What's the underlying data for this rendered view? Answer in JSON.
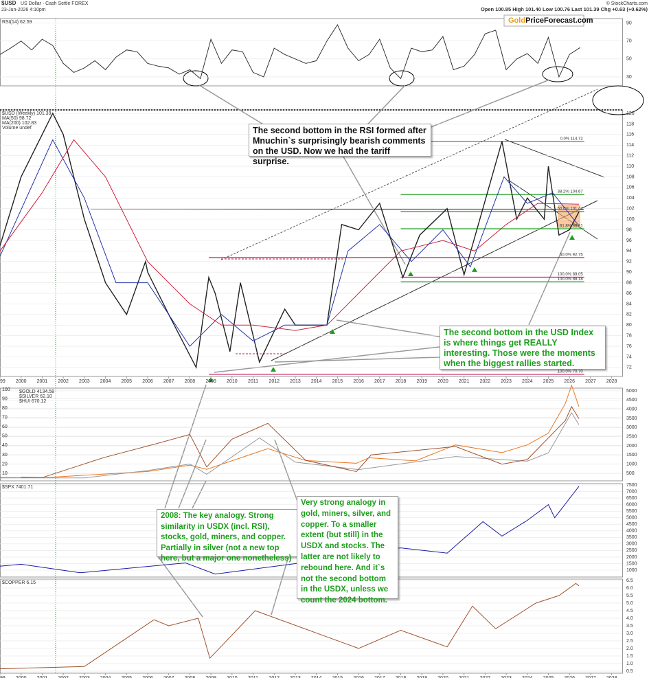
{
  "header": {
    "symbol": "$USD",
    "title": "US Dollar - Cash Settle FOREX",
    "date": "23-Jun-2026 4:10pm",
    "credit": "© StockCharts.com",
    "quote": "Open 100.85 High 101.40 Low 100.76 Last 101.39 Chg +0.63 (+0.62%)",
    "logo": [
      "Gold",
      "PriceForecast.com"
    ]
  },
  "annotations": [
    "The second bottom in the RSI formed after Mnuchin`s surprisingly bearish comments on the USD. Now we had the tariff surprise.",
    "The second bottom in the USD Index is where things get REALLY interesting. Those were the moments when the biggest rallies started.",
    "2008: The key analogy. Strong similarity in USDX (incl. RSI), stocks, gold, miners, and copper. Partially in silver (not a new top here, but a major one nonetheless)",
    "Very strong analogy in gold, miners, silver, and copper. To a smaller extent (but still) in the USDX and stocks. The latter are not likely to rebound here. And it`s not the second bottom in the USDX, unless we count the 2024 bottom."
  ],
  "chart_data": [
    {
      "type": "line",
      "title": "RSI(14) 62.59",
      "xlim": [
        1999,
        2028.5
      ],
      "ylim": [
        20,
        95
      ],
      "yticks": [
        30,
        50,
        70,
        90
      ],
      "series": [
        {
          "name": "RSI",
          "color": "#333333",
          "x": [
            1999,
            1999.5,
            2000,
            2000.5,
            2001,
            2001.5,
            2002,
            2002.5,
            2003,
            2003.5,
            2004,
            2004.5,
            2005,
            2005.5,
            2006,
            2006.5,
            2007,
            2007.5,
            2008,
            2008.5,
            2009,
            2009.5,
            2010,
            2010.5,
            2011,
            2011.5,
            2012,
            2012.5,
            2013,
            2013.5,
            2014,
            2014.5,
            2015,
            2015.5,
            2016,
            2016.5,
            2017,
            2017.5,
            2018,
            2018.5,
            2019,
            2019.5,
            2020,
            2020.5,
            2021,
            2021.5,
            2022,
            2022.5,
            2023,
            2023.5,
            2024,
            2024.5,
            2025,
            2025.5,
            2026,
            2026.5
          ],
          "values": [
            55,
            62,
            70,
            60,
            72,
            65,
            45,
            35,
            40,
            48,
            38,
            52,
            60,
            58,
            45,
            42,
            40,
            33,
            38,
            28,
            72,
            45,
            60,
            58,
            35,
            30,
            62,
            55,
            50,
            45,
            48,
            70,
            88,
            62,
            48,
            55,
            72,
            40,
            28,
            62,
            58,
            60,
            75,
            38,
            42,
            55,
            78,
            82,
            38,
            50,
            56,
            45,
            74,
            30,
            55,
            62.59
          ]
        }
      ]
    },
    {
      "type": "line",
      "legend_extra": "Volume undef",
      "xlim": [
        1999,
        2028.5
      ],
      "ylim": [
        70.3,
        120.65
      ],
      "yticks": [
        72,
        74,
        76,
        78,
        80,
        82,
        84,
        86,
        88,
        90,
        92,
        94,
        96,
        98,
        100,
        102,
        104,
        106,
        108,
        110,
        112,
        114,
        116,
        118,
        120
      ],
      "xticks": [
        1999,
        2000,
        2001,
        2002,
        2003,
        2004,
        2005,
        2006,
        2007,
        2008,
        2009,
        2010,
        2011,
        2012,
        2013,
        2014,
        2015,
        2016,
        2017,
        2018,
        2019,
        2020,
        2021,
        2022,
        2023,
        2024,
        2025,
        2026,
        2027,
        2028
      ],
      "levels": [
        {
          "value": 114.72,
          "label": "0.0% 114.72",
          "color": "#8b5a2b"
        },
        {
          "value": 104.67,
          "label": "38.2% 104.67",
          "color": "#1e9e1e"
        },
        {
          "value": 101.44,
          "label": "50.0% 101.44",
          "color": "#1e9e1e"
        },
        {
          "value": 98.21,
          "label": "61.8% 98.21",
          "color": "#1e9e1e"
        },
        {
          "value": 92.75,
          "label": "50.0% 92.75",
          "color": "#c2185b"
        },
        {
          "value": 89.05,
          "label": "100.0% 89.05",
          "color": "#c2185b"
        },
        {
          "value": 88.18,
          "label": "100.0% 88.18",
          "color": "#1e9e1e"
        },
        {
          "value": 70.7,
          "label": "100.0% 70.70",
          "color": "#c2185b"
        }
      ],
      "series": [
        {
          "name": "$USD (Weekly) 101.39",
          "color": "#222222",
          "x": [
            1999,
            2000,
            2001.5,
            2002,
            2003,
            2004,
            2005,
            2005.9,
            2006,
            2007,
            2008.3,
            2008.9,
            2009.2,
            2009.9,
            2010.4,
            2011.3,
            2012.5,
            2013,
            2014.5,
            2015.2,
            2016,
            2017,
            2018.1,
            2018.9,
            2020.2,
            2021,
            2022.8,
            2023.5,
            2024,
            2024.8,
            2025,
            2025.5,
            2026,
            2026.45
          ],
          "values": [
            95,
            108,
            120,
            116,
            100,
            88,
            82,
            92,
            90,
            82,
            72,
            89,
            86,
            75,
            88,
            73,
            83,
            80,
            80,
            99,
            98,
            103,
            89,
            97,
            102,
            89.5,
            114.7,
            100,
            104,
            100,
            110,
            97,
            98,
            101.39
          ]
        },
        {
          "name": "MA(50) 98.72",
          "color": "#2233aa",
          "x": [
            1999,
            2001.5,
            2003,
            2004.5,
            2006,
            2008,
            2009.5,
            2011,
            2012.5,
            2014.5,
            2015.5,
            2017,
            2018.5,
            2020,
            2021.3,
            2022.9,
            2024,
            2025.2,
            2026.45
          ],
          "values": [
            93,
            115,
            104,
            88,
            88,
            76,
            82,
            77,
            80,
            80,
            94,
            99,
            92,
            98,
            91,
            108,
            103,
            105,
            98.72
          ]
        },
        {
          "name": "MA(200) 102.83",
          "color": "#d0203a",
          "x": [
            1999,
            2001,
            2002.5,
            2004,
            2006,
            2008,
            2009.5,
            2011,
            2013,
            2014.5,
            2016,
            2018,
            2020,
            2021.5,
            2023,
            2024.5,
            2026.45
          ],
          "values": [
            94,
            105,
            115,
            108,
            92,
            84,
            80,
            80,
            79,
            80,
            86,
            94,
            96,
            94,
            99,
            103,
            102.83
          ]
        }
      ]
    },
    {
      "type": "line",
      "xlim": [
        1999,
        2028.5
      ],
      "ylim": [
        1.9,
        101.5
      ],
      "yticks": [
        10,
        20,
        30,
        40,
        50,
        60,
        70,
        80,
        90,
        100
      ],
      "y2lim": [
        91,
        5149
      ],
      "y2ticks": [
        500,
        1000,
        1500,
        2000,
        2500,
        3000,
        3500,
        4000,
        4500,
        5000
      ],
      "y3lim": [
        0,
        1000
      ],
      "series": [
        {
          "name": "$GOLD 4134.58",
          "color": "#e87722",
          "axis": "y2",
          "x": [
            1999,
            2001,
            2006,
            2008,
            2008.8,
            2011.7,
            2013.5,
            2015.9,
            2016.5,
            2018.7,
            2020.6,
            2022.8,
            2024,
            2025,
            2025.8,
            2026.1,
            2026.45
          ],
          "values": [
            280,
            260,
            600,
            950,
            720,
            1850,
            1200,
            1050,
            1350,
            1180,
            2050,
            1630,
            2050,
            2700,
            4300,
            5300,
            4134.58
          ]
        },
        {
          "name": "$SILVER 62.10",
          "color": "#999999",
          "x": [
            1999,
            2003,
            2006,
            2008,
            2008.8,
            2011.3,
            2013,
            2016,
            2020.6,
            2024,
            2025,
            2026.1,
            2026.45
          ],
          "values": [
            5,
            5,
            13,
            20,
            9,
            48,
            22,
            14,
            28,
            23,
            32,
            75,
            62.1
          ]
        },
        {
          "name": "$HUI 670.12",
          "color": "#a0522d",
          "axis": "y3",
          "x": [
            2000,
            2001,
            2003.9,
            2006.4,
            2008,
            2008.8,
            2010,
            2011.7,
            2013.5,
            2015.9,
            2016.6,
            2020.6,
            2022.8,
            2024,
            2025.8,
            2026.1,
            2026.45
          ],
          "values": [
            40,
            35,
            250,
            400,
            500,
            150,
            450,
            620,
            220,
            100,
            280,
            370,
            180,
            230,
            650,
            800,
            670.12
          ]
        }
      ]
    },
    {
      "type": "line",
      "xlim": [
        1999,
        2028.5
      ],
      "ylim": [
        476,
        7605
      ],
      "yticks": [
        1000,
        1500,
        2000,
        2500,
        3000,
        3500,
        4000,
        4500,
        5000,
        5500,
        6000,
        6500,
        7000,
        7500
      ],
      "series": [
        {
          "name": "$SPX 7401.71",
          "color": "#1a1aa0",
          "x": [
            1999,
            2000,
            2002.8,
            2007.8,
            2009.2,
            2013,
            2015,
            2018,
            2020.2,
            2021.9,
            2022.8,
            2024,
            2025,
            2025.3,
            2026.45
          ],
          "values": [
            1300,
            1450,
            800,
            1550,
            700,
            1500,
            2100,
            2700,
            2300,
            4700,
            3600,
            4800,
            6000,
            5000,
            7401.71
          ]
        }
      ]
    },
    {
      "type": "line",
      "xlim": [
        1999,
        2028.5
      ],
      "ylim": [
        0.36,
        6.59
      ],
      "yticks": [
        0.5,
        {
          "value": 1,
          "label": "1.0"
        },
        1.5,
        {
          "value": 2,
          "label": "2.0"
        },
        2.5,
        {
          "value": 3,
          "label": "3.0"
        },
        3.5,
        {
          "value": 4,
          "label": "4.0"
        },
        4.5,
        {
          "value": 5,
          "label": "5.0"
        },
        5.5,
        {
          "value": 6,
          "label": "6.0"
        },
        6.5
      ],
      "xticks": [
        1999,
        2000,
        2001,
        2002,
        2003,
        2004,
        2005,
        2006,
        2007,
        2008,
        2009,
        2010,
        2011,
        2012,
        2013,
        2014,
        2015,
        2016,
        2017,
        2018,
        2019,
        2020,
        2021,
        2022,
        2023,
        2024,
        2025,
        2026,
        2027,
        2028
      ],
      "series": [
        {
          "name": "$COPPER 6.15",
          "color": "#a0522d",
          "x": [
            1999,
            2003,
            2006.3,
            2007,
            2008.4,
            2008.95,
            2011.1,
            2016,
            2018,
            2020.2,
            2021.4,
            2022.5,
            2024.4,
            2025.5,
            2026.3,
            2026.45
          ],
          "values": [
            0.65,
            0.8,
            3.9,
            3.5,
            4.0,
            1.35,
            4.5,
            2.0,
            3.2,
            2.1,
            4.8,
            3.3,
            5.0,
            5.5,
            6.3,
            6.15
          ]
        }
      ]
    }
  ]
}
